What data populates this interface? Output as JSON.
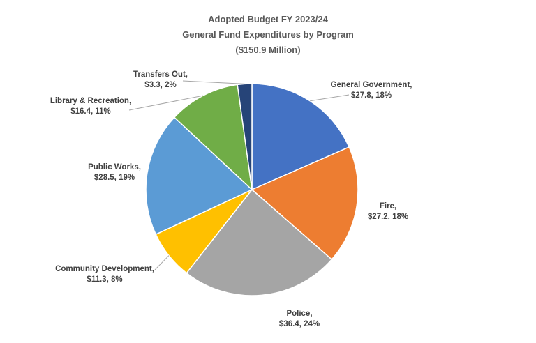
{
  "chart_data": {
    "type": "pie",
    "title": "Adopted Budget FY 2023/24",
    "subtitle": "General Fund Expenditures by Program",
    "subtitle2": "($150.9 Million)",
    "slices": [
      {
        "name": "General Government,",
        "value": 27.8,
        "detail": "$27.8, 18%",
        "color": "#4472C4"
      },
      {
        "name": "Fire,",
        "value": 27.2,
        "detail": "$27.2, 18%",
        "color": "#ED7D31"
      },
      {
        "name": "Police,",
        "value": 36.4,
        "detail": "$36.4, 24%",
        "color": "#A5A5A5"
      },
      {
        "name": "Community Development,",
        "value": 11.3,
        "detail": "$11.3, 8%",
        "color": "#FFC000"
      },
      {
        "name": "Public Works,",
        "value": 28.5,
        "detail": "$28.5, 19%",
        "color": "#5B9BD5"
      },
      {
        "name": "Library & Recreation,",
        "value": 16.4,
        "detail": "$16.4, 11%",
        "color": "#70AD47"
      },
      {
        "name": "Transfers Out,",
        "value": 3.3,
        "detail": "$3.3, 2%",
        "color": "#264478"
      }
    ]
  }
}
